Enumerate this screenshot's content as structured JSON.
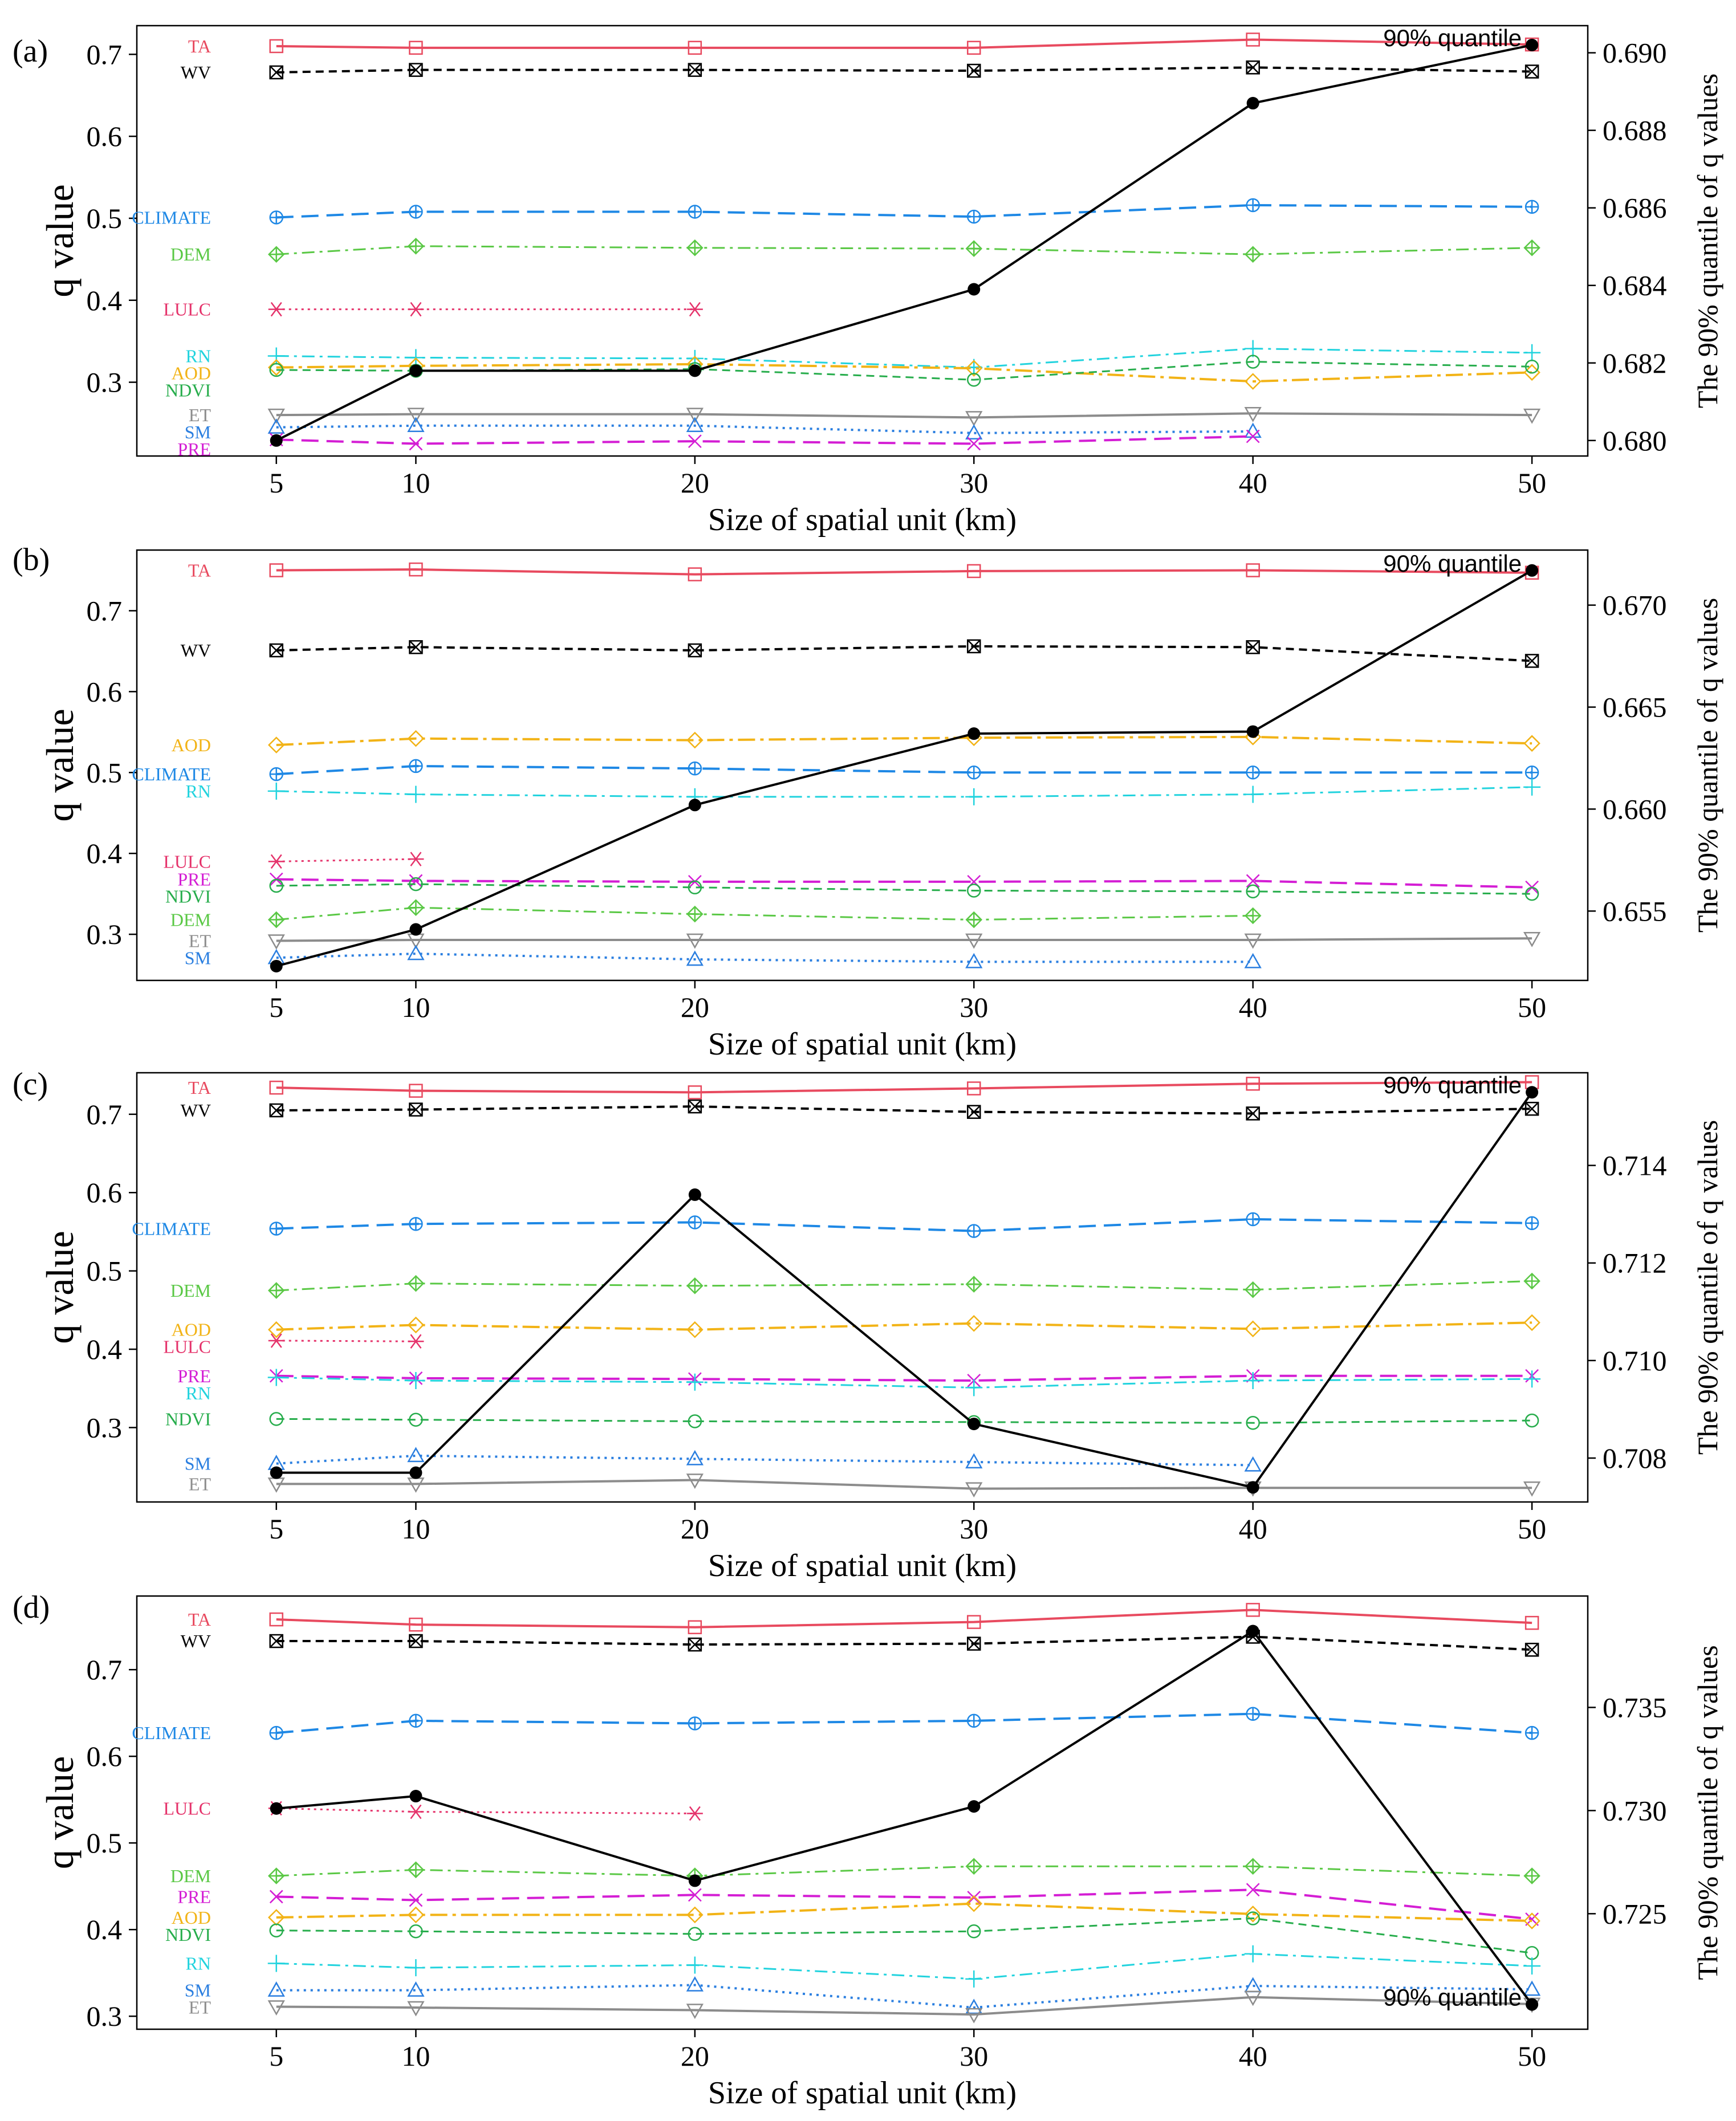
{
  "figure": {
    "shared_x": [
      5,
      10,
      20,
      30,
      40,
      50
    ],
    "legend_label": "90% quantile",
    "colors": {
      "TA": "#e84a5f",
      "WV": "#000000",
      "CLIMATE": "#1e88e5",
      "DEM": "#5ac845",
      "LULC": "#e5336b",
      "RN": "#22d3de",
      "AOD": "#f2b316",
      "NDVI": "#27ad4c",
      "ET": "#8c8c8c",
      "SM": "#2b7fe0",
      "PRE": "#d41ed4",
      "quantile": "#000000"
    }
  },
  "chart_data": [
    {
      "type": "line",
      "panel_label": "(a)",
      "title": "",
      "xlabel": "Size of spatial unit (km)",
      "ylabel": "q value",
      "ylabel_right": "The 90% quantile of q values",
      "x": [
        5,
        10,
        20,
        30,
        40,
        50
      ],
      "xlim": [
        0,
        52
      ],
      "ylim": [
        0.21,
        0.735
      ],
      "yticks": [
        0.3,
        0.4,
        0.5,
        0.6,
        0.7
      ],
      "ylim_right": [
        0.6796,
        0.6907
      ],
      "yticks_right": [
        0.68,
        0.682,
        0.684,
        0.686,
        0.688,
        0.69
      ],
      "quantile_label": "90% quantile",
      "quantile_label_pos": "top-right",
      "series": [
        {
          "name": "TA",
          "label": "TA",
          "values": [
            0.71,
            0.708,
            0.708,
            0.708,
            0.718,
            0.712
          ]
        },
        {
          "name": "WV",
          "label": "WV",
          "values": [
            0.678,
            0.681,
            0.681,
            0.68,
            0.684,
            0.679
          ]
        },
        {
          "name": "CLIMATE",
          "label": "CLIMATE",
          "values": [
            0.501,
            0.508,
            0.508,
            0.502,
            0.516,
            0.514
          ]
        },
        {
          "name": "DEM",
          "label": "DEM",
          "values": [
            0.456,
            0.466,
            0.464,
            0.463,
            0.456,
            0.464
          ]
        },
        {
          "name": "LULC",
          "label": "LULC",
          "values": [
            0.389,
            0.389,
            0.389,
            null,
            null,
            null
          ]
        },
        {
          "name": "RN",
          "label": "RN",
          "values": [
            0.332,
            0.33,
            0.329,
            0.318,
            0.341,
            0.336
          ]
        },
        {
          "name": "AOD",
          "label": "AOD",
          "values": [
            0.318,
            0.32,
            0.322,
            0.317,
            0.301,
            0.312
          ]
        },
        {
          "name": "NDVI",
          "label": "NDVI",
          "values": [
            0.315,
            0.314,
            0.316,
            0.303,
            0.325,
            0.319
          ]
        },
        {
          "name": "ET",
          "label": "ET",
          "values": [
            0.26,
            0.261,
            0.261,
            0.257,
            0.262,
            0.26
          ]
        },
        {
          "name": "SM",
          "label": "SM",
          "values": [
            0.245,
            0.247,
            0.247,
            0.238,
            0.24,
            null
          ]
        },
        {
          "name": "PRE",
          "label": "PRE",
          "values": [
            0.23,
            0.225,
            0.228,
            0.225,
            0.234,
            null
          ]
        }
      ],
      "quantile": [
        0.68,
        0.6818,
        0.6818,
        0.6839,
        0.6887,
        0.6902
      ]
    },
    {
      "type": "line",
      "panel_label": "(b)",
      "title": "",
      "xlabel": "Size of spatial unit (km)",
      "ylabel": "q value",
      "ylabel_right": "The 90% quantile of q values",
      "x": [
        5,
        10,
        20,
        30,
        40,
        50
      ],
      "xlim": [
        0,
        52
      ],
      "ylim": [
        0.243,
        0.775
      ],
      "yticks": [
        0.3,
        0.4,
        0.5,
        0.6,
        0.7
      ],
      "ylim_right": [
        0.6516,
        0.6727
      ],
      "yticks_right": [
        0.655,
        0.66,
        0.665,
        0.67
      ],
      "quantile_label": "90% quantile",
      "quantile_label_pos": "top-right",
      "series": [
        {
          "name": "TA",
          "label": "TA",
          "values": [
            0.75,
            0.751,
            0.745,
            0.749,
            0.75,
            0.747
          ]
        },
        {
          "name": "WV",
          "label": "WV",
          "values": [
            0.651,
            0.655,
            0.651,
            0.656,
            0.655,
            0.638
          ]
        },
        {
          "name": "AOD",
          "label": "AOD",
          "values": [
            0.534,
            0.542,
            0.54,
            0.543,
            0.544,
            0.536
          ]
        },
        {
          "name": "CLIMATE",
          "label": "CLIMATE",
          "values": [
            0.498,
            0.508,
            0.505,
            0.5,
            0.5,
            0.5
          ]
        },
        {
          "name": "RN",
          "label": "RN",
          "values": [
            0.477,
            0.473,
            0.47,
            0.47,
            0.473,
            0.482
          ]
        },
        {
          "name": "LULC",
          "label": "LULC",
          "values": [
            0.39,
            0.393,
            null,
            null,
            null,
            null
          ]
        },
        {
          "name": "PRE",
          "label": "PRE",
          "values": [
            0.368,
            0.366,
            0.365,
            0.365,
            0.366,
            0.358
          ]
        },
        {
          "name": "NDVI",
          "label": "NDVI",
          "values": [
            0.36,
            0.362,
            0.358,
            0.354,
            0.353,
            0.35
          ]
        },
        {
          "name": "DEM",
          "label": "DEM",
          "values": [
            0.318,
            0.333,
            0.325,
            0.318,
            0.323,
            null
          ]
        },
        {
          "name": "ET",
          "label": "ET",
          "values": [
            0.292,
            0.293,
            0.293,
            0.293,
            0.293,
            0.295
          ]
        },
        {
          "name": "SM",
          "label": "SM",
          "values": [
            0.271,
            0.276,
            0.269,
            0.266,
            0.266,
            null
          ]
        }
      ],
      "quantile": [
        0.6523,
        0.6541,
        0.6602,
        0.6637,
        0.6638,
        0.6717
      ]
    },
    {
      "type": "line",
      "panel_label": "(c)",
      "title": "",
      "xlabel": "Size of spatial unit (km)",
      "ylabel": "q value",
      "ylabel_right": "The 90% quantile of q values",
      "x": [
        5,
        10,
        20,
        30,
        40,
        50
      ],
      "xlim": [
        0,
        52
      ],
      "ylim": [
        0.205,
        0.753
      ],
      "yticks": [
        0.3,
        0.4,
        0.5,
        0.6,
        0.7
      ],
      "ylim_right": [
        0.7071,
        0.7159
      ],
      "yticks_right": [
        0.708,
        0.71,
        0.712,
        0.714
      ],
      "quantile_label": "90% quantile",
      "quantile_label_pos": "top-right",
      "series": [
        {
          "name": "TA",
          "label": "TA",
          "values": [
            0.734,
            0.73,
            0.728,
            0.733,
            0.739,
            0.741
          ]
        },
        {
          "name": "WV",
          "label": "WV",
          "values": [
            0.705,
            0.706,
            0.71,
            0.703,
            0.701,
            0.707
          ]
        },
        {
          "name": "CLIMATE",
          "label": "CLIMATE",
          "values": [
            0.554,
            0.56,
            0.562,
            0.551,
            0.566,
            0.561
          ]
        },
        {
          "name": "DEM",
          "label": "DEM",
          "values": [
            0.475,
            0.484,
            0.481,
            0.483,
            0.476,
            0.487
          ]
        },
        {
          "name": "AOD",
          "label": "AOD",
          "values": [
            0.425,
            0.431,
            0.425,
            0.433,
            0.426,
            0.434
          ]
        },
        {
          "name": "LULC",
          "label": "LULC",
          "values": [
            0.411,
            0.41,
            null,
            null,
            null,
            null
          ]
        },
        {
          "name": "PRE",
          "label": "PRE",
          "values": [
            0.366,
            0.363,
            0.362,
            0.36,
            0.366,
            0.366
          ]
        },
        {
          "name": "RN",
          "label": "RN",
          "values": [
            0.364,
            0.36,
            0.358,
            0.351,
            0.36,
            0.362
          ]
        },
        {
          "name": "NDVI",
          "label": "NDVI",
          "values": [
            0.311,
            0.31,
            0.308,
            0.307,
            0.306,
            0.309
          ]
        },
        {
          "name": "SM",
          "label": "SM",
          "values": [
            0.254,
            0.264,
            0.26,
            0.256,
            0.252,
            null
          ]
        },
        {
          "name": "ET",
          "label": "ET",
          "values": [
            0.228,
            0.228,
            0.233,
            0.222,
            0.223,
            0.223
          ]
        }
      ],
      "quantile": [
        0.7077,
        0.7077,
        0.7134,
        0.7087,
        0.7074,
        0.7155
      ]
    },
    {
      "type": "line",
      "panel_label": "(d)",
      "title": "",
      "xlabel": "Size of spatial unit (km)",
      "ylabel": "q value",
      "ylabel_right": "The 90% quantile of q values",
      "x": [
        5,
        10,
        20,
        30,
        40,
        50
      ],
      "xlim": [
        0,
        52
      ],
      "ylim": [
        0.285,
        0.785
      ],
      "yticks": [
        0.3,
        0.4,
        0.5,
        0.6,
        0.7
      ],
      "ylim_right": [
        0.7194,
        0.7404
      ],
      "yticks_right": [
        0.725,
        0.73,
        0.735
      ],
      "quantile_label": "90% quantile",
      "quantile_label_pos": "bottom-right",
      "series": [
        {
          "name": "TA",
          "label": "TA",
          "values": [
            0.758,
            0.752,
            0.749,
            0.755,
            0.769,
            0.754
          ]
        },
        {
          "name": "WV",
          "label": "WV",
          "values": [
            0.733,
            0.733,
            0.729,
            0.73,
            0.738,
            0.723
          ]
        },
        {
          "name": "CLIMATE",
          "label": "CLIMATE",
          "values": [
            0.627,
            0.641,
            0.638,
            0.641,
            0.649,
            0.627
          ]
        },
        {
          "name": "LULC",
          "label": "LULC",
          "values": [
            0.54,
            0.536,
            0.534,
            null,
            null,
            null
          ]
        },
        {
          "name": "DEM",
          "label": "DEM",
          "values": [
            0.462,
            0.469,
            0.462,
            0.473,
            0.473,
            0.462
          ]
        },
        {
          "name": "PRE",
          "label": "PRE",
          "values": [
            0.438,
            0.434,
            0.44,
            0.437,
            0.446,
            0.412
          ]
        },
        {
          "name": "AOD",
          "label": "AOD",
          "values": [
            0.414,
            0.417,
            0.417,
            0.43,
            0.418,
            0.41
          ]
        },
        {
          "name": "NDVI",
          "label": "NDVI",
          "values": [
            0.399,
            0.398,
            0.395,
            0.398,
            0.413,
            0.373
          ]
        },
        {
          "name": "RN",
          "label": "RN",
          "values": [
            0.361,
            0.356,
            0.359,
            0.343,
            0.372,
            0.358
          ]
        },
        {
          "name": "SM",
          "label": "SM",
          "values": [
            0.33,
            0.33,
            0.336,
            0.31,
            0.335,
            0.331
          ]
        },
        {
          "name": "ET",
          "label": "ET",
          "values": [
            0.311,
            0.31,
            0.307,
            0.302,
            0.322,
            0.314
          ]
        }
      ],
      "quantile": [
        0.7301,
        0.7307,
        0.7266,
        0.7302,
        0.7387,
        0.7206
      ]
    }
  ]
}
